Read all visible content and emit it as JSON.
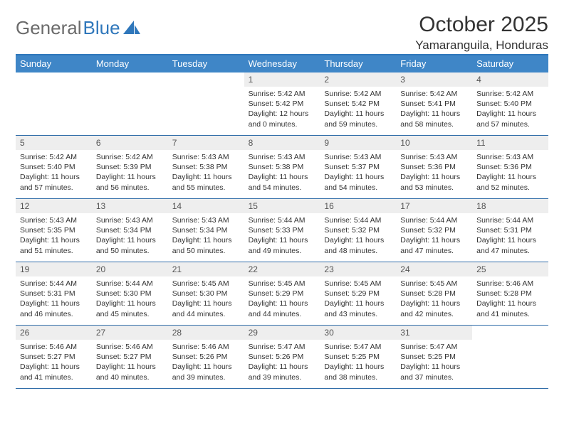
{
  "brand": {
    "part1": "General",
    "part2": "Blue"
  },
  "header": {
    "month_title": "October 2025",
    "location": "Yamaranguila, Honduras"
  },
  "colors": {
    "header_bg": "#3f86c7",
    "header_border_top": "#2f77bb",
    "week_divider": "#2f6ca8",
    "daynum_bg": "#eeeeee",
    "text": "#333333",
    "logo_gray": "#6b6b6b",
    "logo_blue": "#2f77bb",
    "page_bg": "#ffffff"
  },
  "day_names": [
    "Sunday",
    "Monday",
    "Tuesday",
    "Wednesday",
    "Thursday",
    "Friday",
    "Saturday"
  ],
  "weeks": [
    [
      null,
      null,
      null,
      {
        "n": "1",
        "sr": "5:42 AM",
        "ss": "5:42 PM",
        "dl": "12 hours and 0 minutes."
      },
      {
        "n": "2",
        "sr": "5:42 AM",
        "ss": "5:42 PM",
        "dl": "11 hours and 59 minutes."
      },
      {
        "n": "3",
        "sr": "5:42 AM",
        "ss": "5:41 PM",
        "dl": "11 hours and 58 minutes."
      },
      {
        "n": "4",
        "sr": "5:42 AM",
        "ss": "5:40 PM",
        "dl": "11 hours and 57 minutes."
      }
    ],
    [
      {
        "n": "5",
        "sr": "5:42 AM",
        "ss": "5:40 PM",
        "dl": "11 hours and 57 minutes."
      },
      {
        "n": "6",
        "sr": "5:42 AM",
        "ss": "5:39 PM",
        "dl": "11 hours and 56 minutes."
      },
      {
        "n": "7",
        "sr": "5:43 AM",
        "ss": "5:38 PM",
        "dl": "11 hours and 55 minutes."
      },
      {
        "n": "8",
        "sr": "5:43 AM",
        "ss": "5:38 PM",
        "dl": "11 hours and 54 minutes."
      },
      {
        "n": "9",
        "sr": "5:43 AM",
        "ss": "5:37 PM",
        "dl": "11 hours and 54 minutes."
      },
      {
        "n": "10",
        "sr": "5:43 AM",
        "ss": "5:36 PM",
        "dl": "11 hours and 53 minutes."
      },
      {
        "n": "11",
        "sr": "5:43 AM",
        "ss": "5:36 PM",
        "dl": "11 hours and 52 minutes."
      }
    ],
    [
      {
        "n": "12",
        "sr": "5:43 AM",
        "ss": "5:35 PM",
        "dl": "11 hours and 51 minutes."
      },
      {
        "n": "13",
        "sr": "5:43 AM",
        "ss": "5:34 PM",
        "dl": "11 hours and 50 minutes."
      },
      {
        "n": "14",
        "sr": "5:43 AM",
        "ss": "5:34 PM",
        "dl": "11 hours and 50 minutes."
      },
      {
        "n": "15",
        "sr": "5:44 AM",
        "ss": "5:33 PM",
        "dl": "11 hours and 49 minutes."
      },
      {
        "n": "16",
        "sr": "5:44 AM",
        "ss": "5:32 PM",
        "dl": "11 hours and 48 minutes."
      },
      {
        "n": "17",
        "sr": "5:44 AM",
        "ss": "5:32 PM",
        "dl": "11 hours and 47 minutes."
      },
      {
        "n": "18",
        "sr": "5:44 AM",
        "ss": "5:31 PM",
        "dl": "11 hours and 47 minutes."
      }
    ],
    [
      {
        "n": "19",
        "sr": "5:44 AM",
        "ss": "5:31 PM",
        "dl": "11 hours and 46 minutes."
      },
      {
        "n": "20",
        "sr": "5:44 AM",
        "ss": "5:30 PM",
        "dl": "11 hours and 45 minutes."
      },
      {
        "n": "21",
        "sr": "5:45 AM",
        "ss": "5:30 PM",
        "dl": "11 hours and 44 minutes."
      },
      {
        "n": "22",
        "sr": "5:45 AM",
        "ss": "5:29 PM",
        "dl": "11 hours and 44 minutes."
      },
      {
        "n": "23",
        "sr": "5:45 AM",
        "ss": "5:29 PM",
        "dl": "11 hours and 43 minutes."
      },
      {
        "n": "24",
        "sr": "5:45 AM",
        "ss": "5:28 PM",
        "dl": "11 hours and 42 minutes."
      },
      {
        "n": "25",
        "sr": "5:46 AM",
        "ss": "5:28 PM",
        "dl": "11 hours and 41 minutes."
      }
    ],
    [
      {
        "n": "26",
        "sr": "5:46 AM",
        "ss": "5:27 PM",
        "dl": "11 hours and 41 minutes."
      },
      {
        "n": "27",
        "sr": "5:46 AM",
        "ss": "5:27 PM",
        "dl": "11 hours and 40 minutes."
      },
      {
        "n": "28",
        "sr": "5:46 AM",
        "ss": "5:26 PM",
        "dl": "11 hours and 39 minutes."
      },
      {
        "n": "29",
        "sr": "5:47 AM",
        "ss": "5:26 PM",
        "dl": "11 hours and 39 minutes."
      },
      {
        "n": "30",
        "sr": "5:47 AM",
        "ss": "5:25 PM",
        "dl": "11 hours and 38 minutes."
      },
      {
        "n": "31",
        "sr": "5:47 AM",
        "ss": "5:25 PM",
        "dl": "11 hours and 37 minutes."
      },
      null
    ]
  ],
  "labels": {
    "sunrise": "Sunrise:",
    "sunset": "Sunset:",
    "daylight": "Daylight:"
  }
}
